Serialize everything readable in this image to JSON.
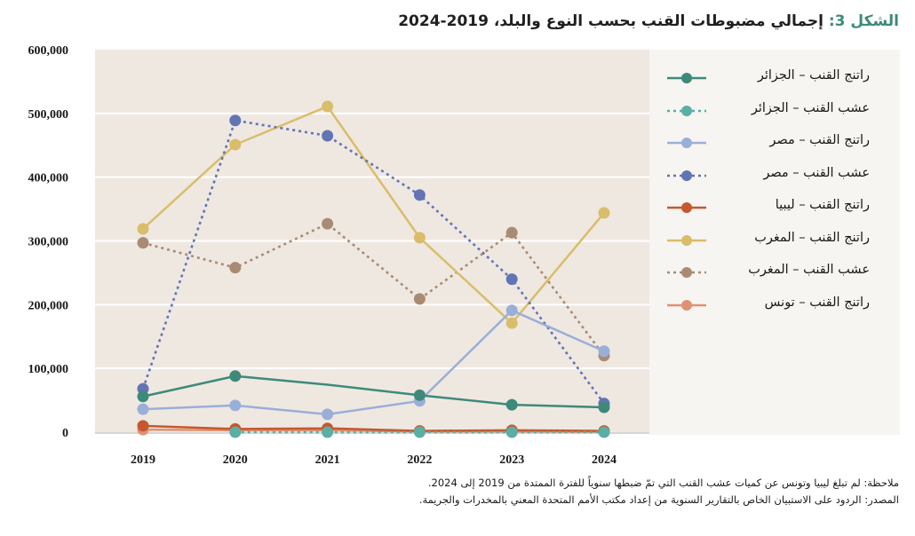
{
  "title": {
    "prefix": "الشكل 3:",
    "text": "إجمالي مضبوطات القنب بحسب النوع والبلد، 2019-2024"
  },
  "chart_data": {
    "type": "line",
    "title": "الشكل 3: إجمالي مضبوطات القنب بحسب النوع والبلد، 2019-2024",
    "xlabel": "",
    "ylabel": "",
    "x": [
      "2019",
      "2020",
      "2021",
      "2022",
      "2023",
      "2024"
    ],
    "ylim": [
      0,
      600000
    ],
    "yticks": [
      "0",
      "100,000",
      "200,000",
      "300,000",
      "400,000",
      "500,000",
      "600,000"
    ],
    "ytick_values": [
      0,
      100000,
      200000,
      300000,
      400000,
      500000,
      600000
    ],
    "grid": true,
    "legend_position": "right",
    "series": [
      {
        "name": "راتنج القنب – الجزائر",
        "color": "#3d8a7a",
        "dash": false,
        "values": [
          56000,
          88000,
          null,
          58000,
          43000,
          39000
        ],
        "line_through_gaps": true
      },
      {
        "name": "عشب القنب – الجزائر",
        "color": "#5aaea5",
        "dash": true,
        "values": [
          null,
          0,
          0,
          0,
          0,
          0
        ]
      },
      {
        "name": "راتنج القنب – مصر",
        "color": "#9aafd8",
        "dash": false,
        "values": [
          36000,
          42000,
          28000,
          49000,
          191000,
          127000
        ]
      },
      {
        "name": "عشب القنب – مصر",
        "color": "#6274b4",
        "dash": true,
        "values": [
          68000,
          489000,
          465000,
          372000,
          240000,
          45000
        ]
      },
      {
        "name": "راتنج القنب – ليبيا",
        "color": "#c4582e",
        "dash": false,
        "values": [
          10000,
          5000,
          6000,
          2000,
          3000,
          2000
        ]
      },
      {
        "name": "راتنج القنب – المغرب",
        "color": "#d9bd6a",
        "dash": false,
        "values": [
          319000,
          451000,
          511000,
          305000,
          171000,
          344000
        ]
      },
      {
        "name": "عشب القنب – المغرب",
        "color": "#a98b74",
        "dash": true,
        "values": [
          297000,
          258000,
          327000,
          209000,
          313000,
          120000
        ]
      },
      {
        "name": "راتنج القنب – تونس",
        "color": "#df9271",
        "dash": false,
        "values": [
          4000,
          3000,
          3000,
          1000,
          1000,
          500
        ]
      }
    ]
  },
  "notes": {
    "note": "ملاحظة: لم تبلغ ليبيا وتونس عن كميات عشب القنب التي تمّ ضبطها سنوياً للفترة الممتدة من 2019 إلى 2024.",
    "source": "المصدر: الردود على الاستبيان الخاص بالتقارير السنوية من إعداد مكتب الأمم المتحدة المعني بالمخدرات والجريمة."
  }
}
